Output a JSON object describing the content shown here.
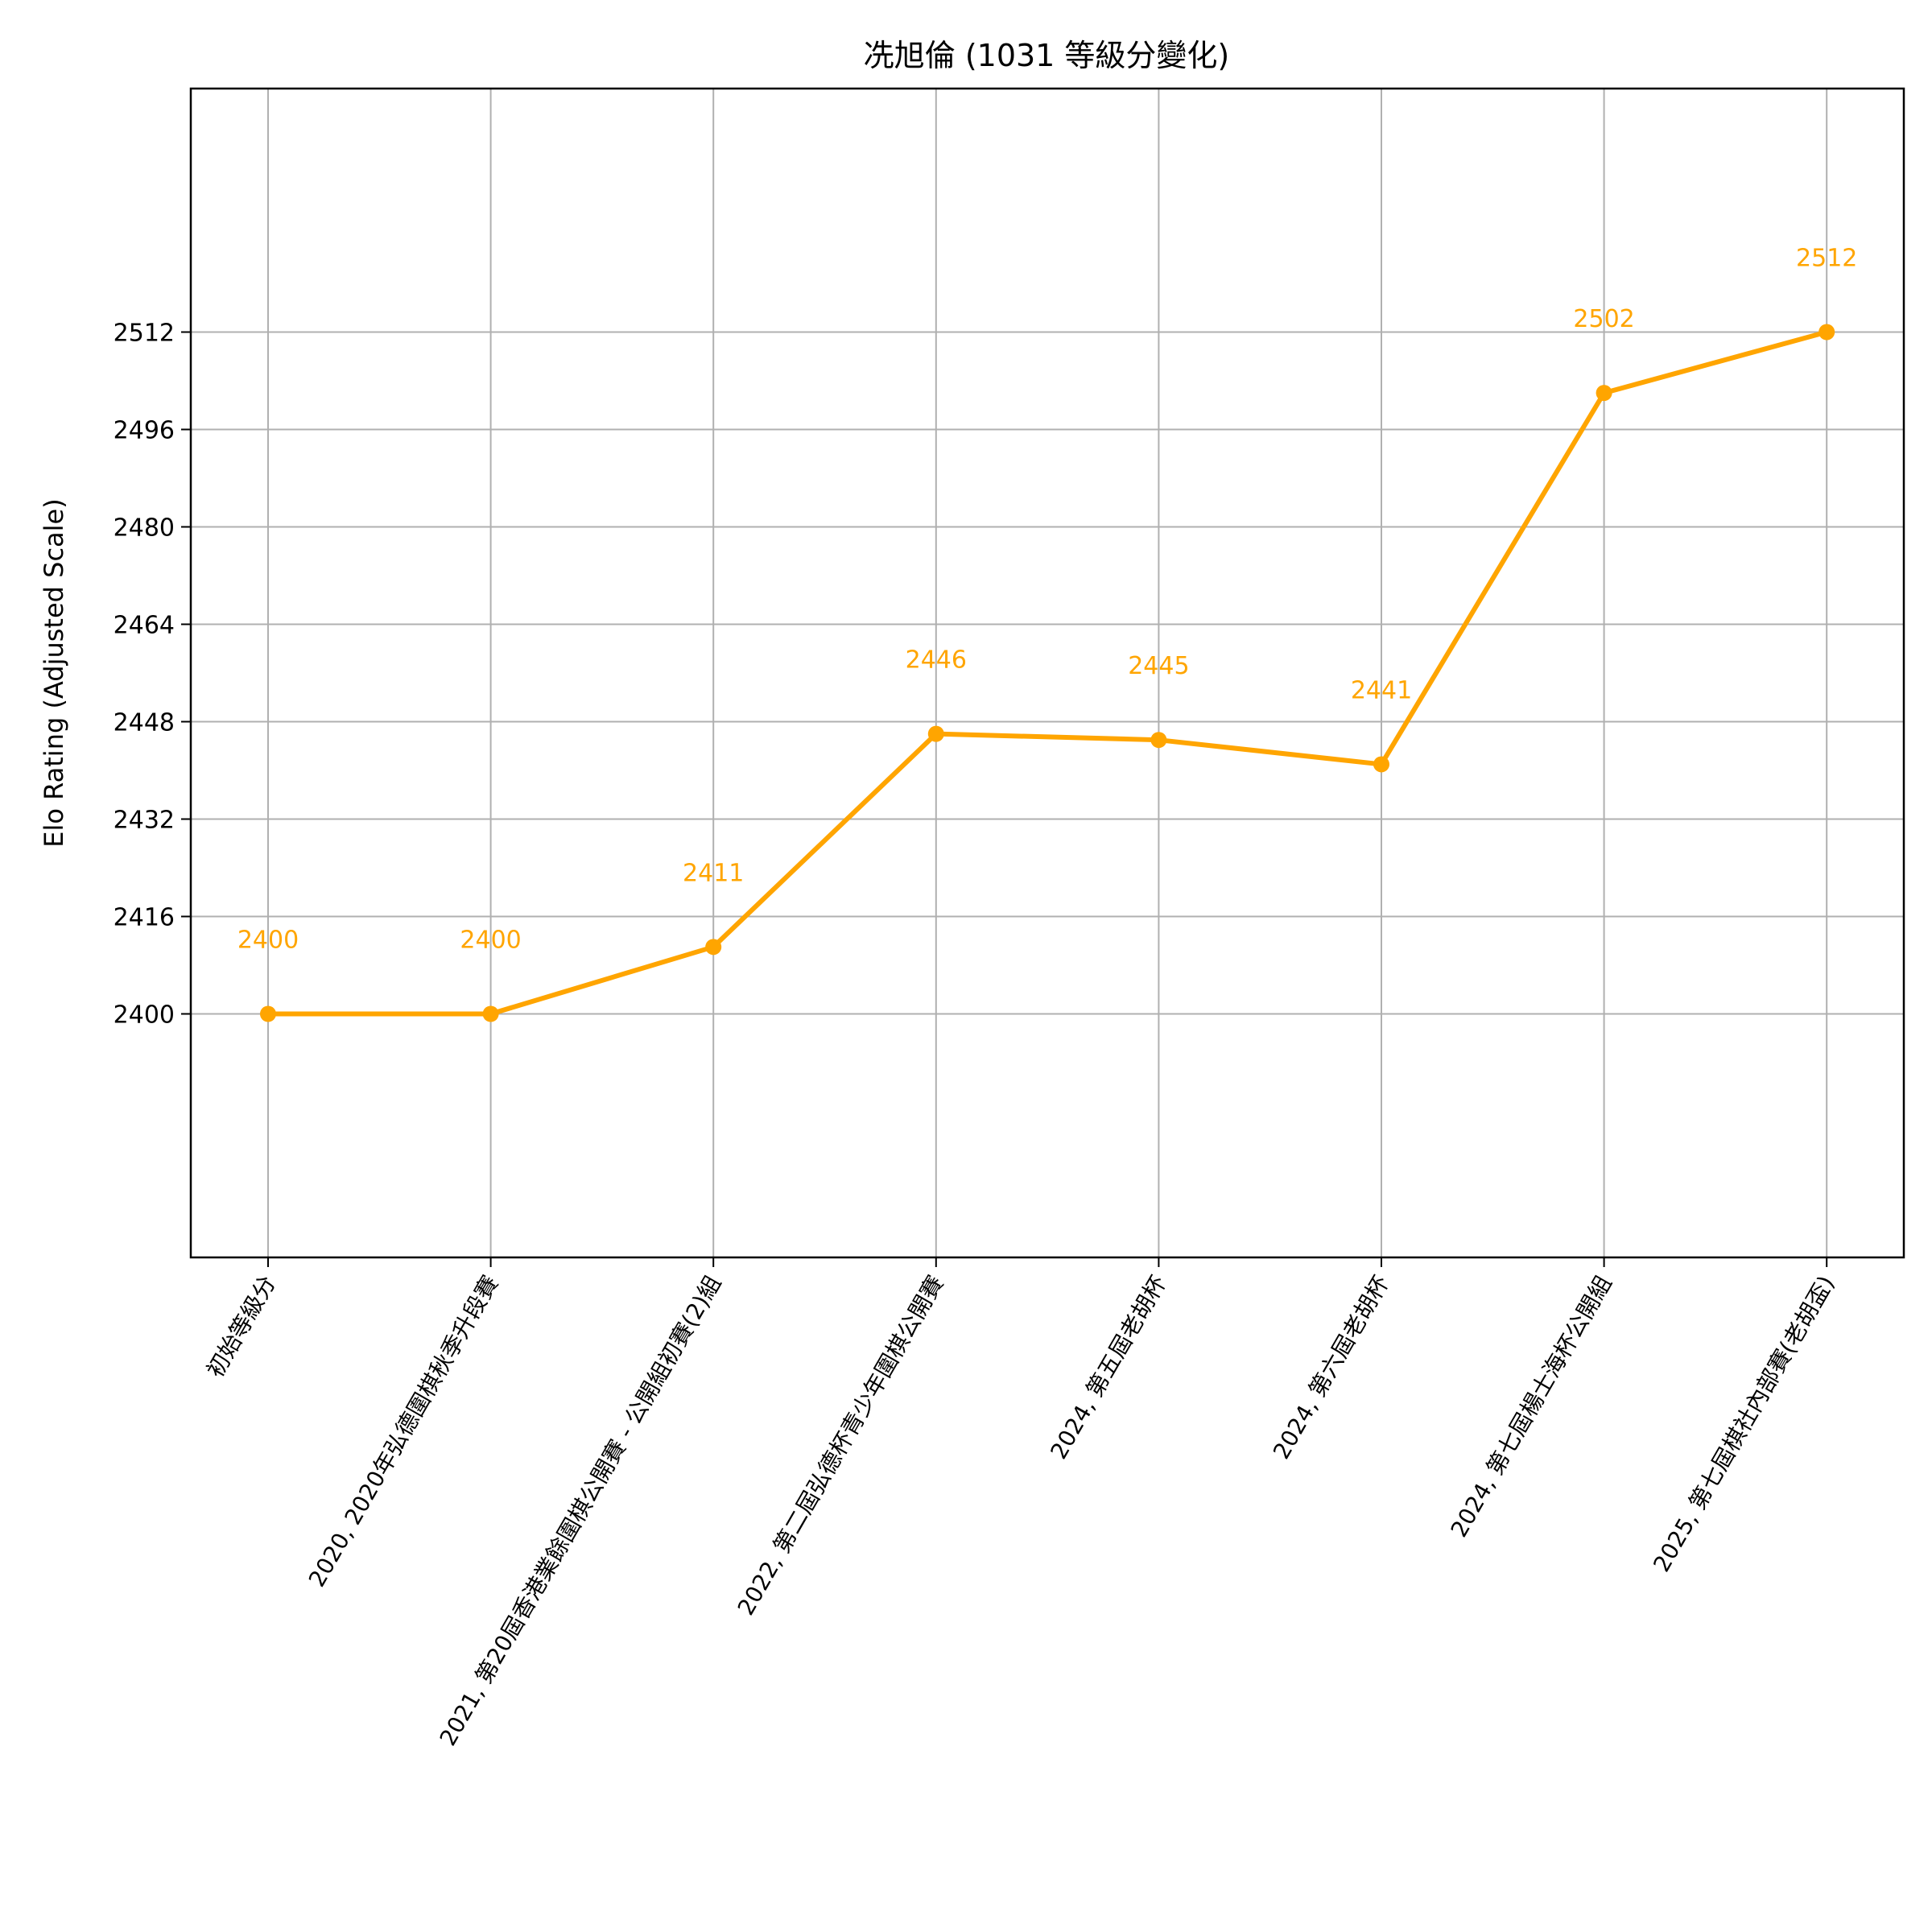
{
  "chart_data": {
    "type": "line",
    "title": "冼旭倫 (1031 等級分變化)",
    "xlabel": "",
    "ylabel": "Elo Rating (Adjusted Scale)",
    "categories": [
      "初始等級分",
      "2020, 2020年弘德圍棋秋季升段賽",
      "2021, 第20屆香港業餘圍棋公開賽 - 公開組初賽(2)組",
      "2022, 第二屆弘德杯青少年圍棋公開賽",
      "2024, 第五屆老胡杯",
      "2024, 第六屆老胡杯",
      "2024, 第七屆楊士海杯公開組",
      "2025, 第七屆棋社內部賽(老胡盃)"
    ],
    "values": [
      2400,
      2400,
      2411,
      2446,
      2445,
      2441,
      2502,
      2512
    ],
    "data_labels": [
      "2400",
      "2400",
      "2411",
      "2446",
      "2445",
      "2441",
      "2502",
      "2512"
    ],
    "yticks": [
      2400,
      2416,
      2432,
      2448,
      2464,
      2480,
      2496,
      2512
    ],
    "ytick_labels": [
      "2400",
      "2416",
      "2432",
      "2448",
      "2464",
      "2480",
      "2496",
      "2512"
    ],
    "ylim": [
      2360,
      2552
    ],
    "grid": true,
    "line_color": "#FFA500",
    "label_color": "#FFA500"
  }
}
